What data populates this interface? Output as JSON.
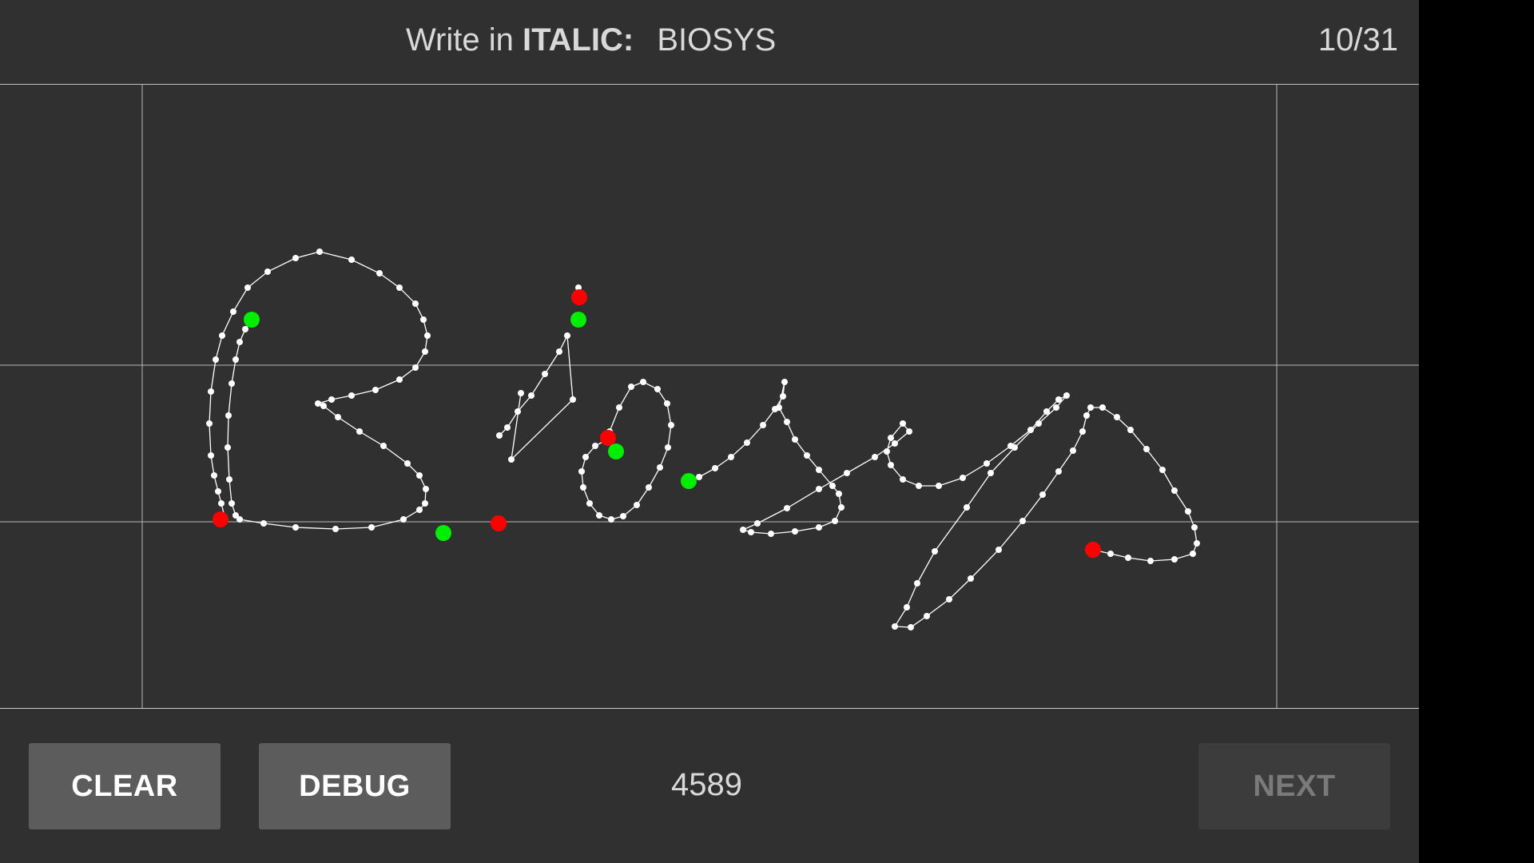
{
  "header": {
    "prompt_prefix": "Write in",
    "style_label": "ITALIC:",
    "target_word": "BIOSYS",
    "progress": "10/31"
  },
  "canvas": {
    "stroke_color": "#ffffff",
    "point_color": "#ffffff",
    "start_marker_color": "#00ee00",
    "end_marker_color": "#ff0000",
    "guide_color": "#bdbdbd"
  },
  "footer": {
    "clear_label": "CLEAR",
    "debug_label": "DEBUG",
    "counter": "4589",
    "next_label": "NEXT",
    "next_enabled": false
  }
}
